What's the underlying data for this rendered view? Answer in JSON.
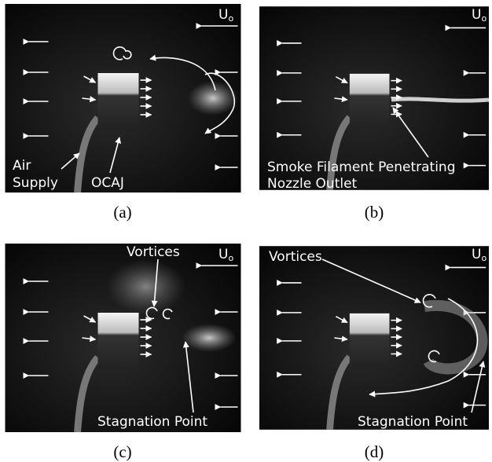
{
  "flow_symbol": {
    "main": "U",
    "sub": "o"
  },
  "panels": [
    {
      "caption": "(a)",
      "annotations": [
        "Air",
        "Supply",
        "OCAJ"
      ]
    },
    {
      "caption": "(b)",
      "annotations": [
        "Smoke Filament Penetrating",
        "Nozzle Outlet"
      ]
    },
    {
      "caption": "(c)",
      "annotations": [
        "Vortices",
        "Stagnation Point"
      ]
    },
    {
      "caption": "(d)",
      "annotations": [
        "Vortices",
        "Stagnation Point"
      ]
    }
  ]
}
